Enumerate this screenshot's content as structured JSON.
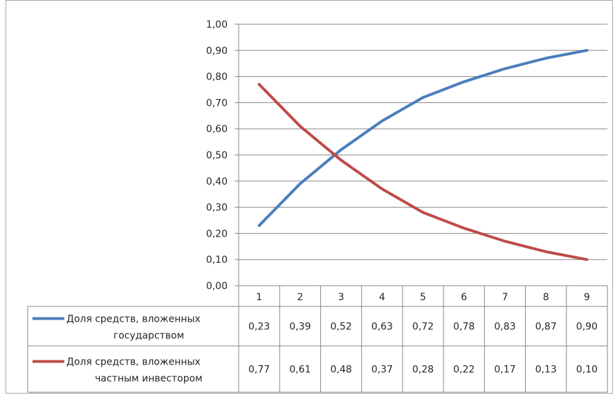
{
  "chart_data": {
    "type": "line",
    "categories": [
      "1",
      "2",
      "3",
      "4",
      "5",
      "6",
      "7",
      "8",
      "9"
    ],
    "ylim": [
      0,
      1
    ],
    "y_ticks": [
      "0,00",
      "0,10",
      "0,20",
      "0,30",
      "0,40",
      "0,50",
      "0,60",
      "0,70",
      "0,80",
      "0,90",
      "1,00"
    ],
    "grid": true,
    "legend_placement": "data-table",
    "series": [
      {
        "name": "Доля средств, вложенных государством",
        "name_lines": [
          "Доля средств, вложенных",
          "государством"
        ],
        "color": "#4a7ebb",
        "values": [
          0.23,
          0.39,
          0.52,
          0.63,
          0.72,
          0.78,
          0.83,
          0.87,
          0.9
        ],
        "labels": [
          "0,23",
          "0,39",
          "0,52",
          "0,63",
          "0,72",
          "0,78",
          "0,83",
          "0,87",
          "0,90"
        ]
      },
      {
        "name": "Доля средств, вложенных частным инвестором",
        "name_lines": [
          "Доля средств, вложенных",
          "частным инвестором"
        ],
        "color": "#be4b48",
        "values": [
          0.77,
          0.61,
          0.48,
          0.37,
          0.28,
          0.22,
          0.17,
          0.13,
          0.1
        ],
        "labels": [
          "0,77",
          "0,61",
          "0,48",
          "0,37",
          "0,28",
          "0,22",
          "0,17",
          "0,13",
          "0,10"
        ]
      }
    ]
  }
}
